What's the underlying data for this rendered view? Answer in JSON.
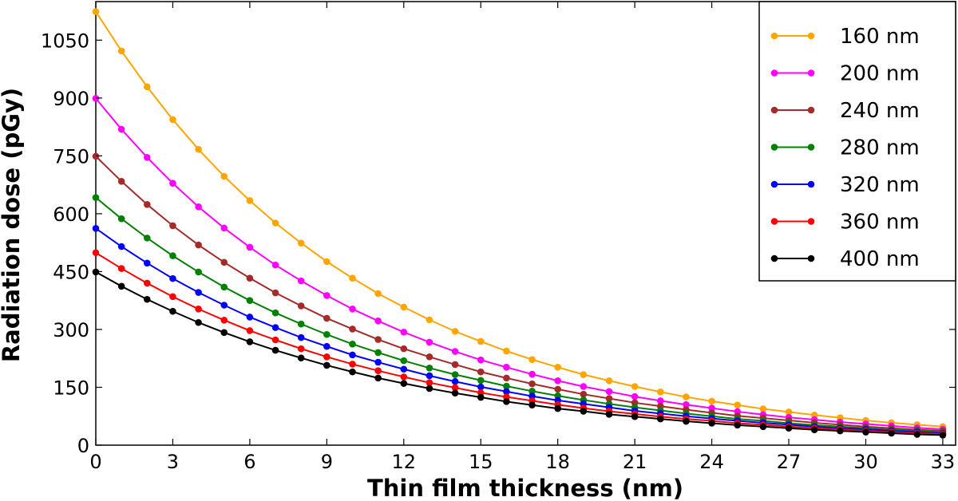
{
  "chart_data": {
    "type": "line",
    "title": "",
    "xlabel": "Thin film thickness (nm)",
    "ylabel": "Radiation dose (pGy)",
    "xlim": [
      0,
      33.5
    ],
    "ylim": [
      0,
      1150
    ],
    "x_ticks": [
      0,
      3,
      6,
      9,
      12,
      15,
      18,
      21,
      24,
      27,
      30,
      33
    ],
    "y_ticks": [
      0,
      150,
      300,
      450,
      600,
      750,
      900,
      1050
    ],
    "grid": false,
    "legend_position": "top-right",
    "x": [
      0,
      1,
      2,
      3,
      4,
      5,
      6,
      7,
      8,
      9,
      10,
      11,
      12,
      13,
      14,
      15,
      16,
      17,
      18,
      19,
      20,
      21,
      22,
      23,
      24,
      25,
      26,
      27,
      28,
      29,
      30,
      31,
      32,
      33
    ],
    "series": [
      {
        "name": "160 nm",
        "color": "#FFA500",
        "values": [
          1124,
          1022,
          929,
          844,
          767,
          697,
          634,
          576,
          524,
          476,
          433,
          393,
          358,
          325,
          295,
          269,
          244,
          222,
          202,
          183,
          167,
          152,
          138,
          125,
          114,
          104,
          94,
          86,
          78,
          71,
          64,
          58,
          53,
          48
        ]
      },
      {
        "name": "200 nm",
        "color": "#FF00FF",
        "values": [
          899,
          819,
          746,
          679,
          618,
          563,
          513,
          467,
          426,
          388,
          353,
          322,
          293,
          267,
          243,
          221,
          202,
          184,
          167,
          152,
          139,
          126,
          115,
          105,
          96,
          87,
          79,
          72,
          66,
          60,
          55,
          50,
          45,
          41
        ]
      },
      {
        "name": "240 nm",
        "color": "#A52A2A",
        "values": [
          749,
          684,
          624,
          569,
          519,
          474,
          433,
          395,
          361,
          329,
          301,
          274,
          250,
          229,
          209,
          190,
          174,
          159,
          145,
          132,
          121,
          110,
          101,
          92,
          84,
          76,
          70,
          64,
          58,
          53,
          48,
          44,
          40,
          37
        ]
      },
      {
        "name": "280 nm",
        "color": "#008000",
        "values": [
          642,
          587,
          537,
          491,
          449,
          410,
          375,
          343,
          314,
          287,
          262,
          240,
          219,
          200,
          183,
          168,
          153,
          140,
          128,
          117,
          107,
          98,
          90,
          82,
          75,
          68,
          63,
          57,
          52,
          48,
          44,
          40,
          37,
          33
        ]
      },
      {
        "name": "320 nm",
        "color": "#0000FF",
        "values": [
          562,
          515,
          472,
          432,
          396,
          363,
          332,
          305,
          279,
          256,
          234,
          215,
          197,
          180,
          165,
          151,
          139,
          127,
          116,
          107,
          98,
          89,
          82,
          75,
          69,
          63,
          58,
          53,
          48,
          44,
          41,
          37,
          34,
          31
        ]
      },
      {
        "name": "360 nm",
        "color": "#FF0000",
        "values": [
          499,
          458,
          420,
          385,
          353,
          324,
          297,
          273,
          250,
          229,
          210,
          193,
          177,
          162,
          149,
          136,
          125,
          115,
          105,
          96,
          88,
          81,
          74,
          68,
          63,
          57,
          53,
          48,
          44,
          41,
          37,
          34,
          31,
          29
        ]
      },
      {
        "name": "400 nm",
        "color": "#000000",
        "values": [
          449,
          412,
          378,
          347,
          318,
          292,
          268,
          246,
          226,
          207,
          190,
          174,
          160,
          147,
          135,
          124,
          113,
          104,
          95,
          88,
          80,
          74,
          68,
          62,
          57,
          52,
          48,
          44,
          40,
          37,
          34,
          31,
          28,
          26
        ]
      }
    ]
  }
}
